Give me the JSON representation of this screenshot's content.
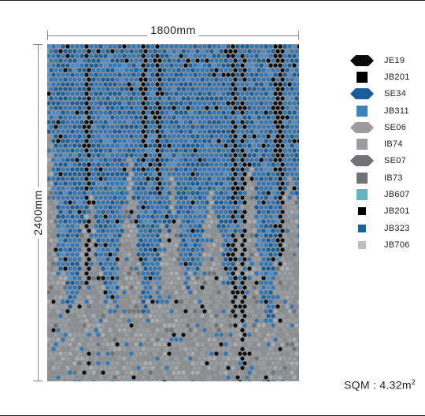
{
  "dimensions": {
    "width_label": "1800mm",
    "height_label": "2400mm"
  },
  "legend": {
    "items": [
      {
        "code": "JE19",
        "shape": "hexagon",
        "color": "#0a0a0a"
      },
      {
        "code": "JB201",
        "shape": "square",
        "color": "#000000"
      },
      {
        "code": "SE34",
        "shape": "hexagon",
        "color": "#175f9c"
      },
      {
        "code": "JB311",
        "shape": "square",
        "color": "#3c82c0"
      },
      {
        "code": "SE06",
        "shape": "hexagon",
        "color": "#9a9ca0"
      },
      {
        "code": "IB74",
        "shape": "square",
        "color": "#9a9ca0"
      },
      {
        "code": "SE07",
        "shape": "hexagon",
        "color": "#6f7276"
      },
      {
        "code": "IB73",
        "shape": "square",
        "color": "#6f7276"
      },
      {
        "code": "JB607",
        "shape": "square",
        "color": "#62b4be"
      },
      {
        "code": "JB201",
        "shape": "square-small",
        "color": "#000000"
      },
      {
        "code": "JB323",
        "shape": "square-small",
        "color": "#17669a"
      },
      {
        "code": "JB706",
        "shape": "square-small",
        "color": "#bcbec2"
      }
    ]
  },
  "area": {
    "value": "4.32",
    "prefix": "SQM : ",
    "unit": "m",
    "unit_power": "2"
  }
}
